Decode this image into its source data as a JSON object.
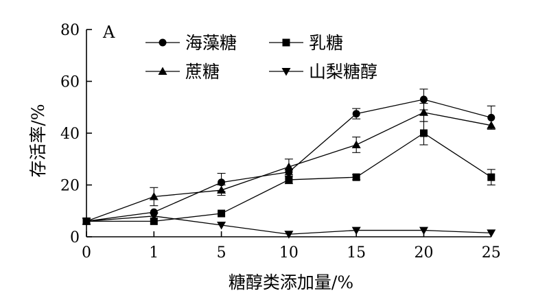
{
  "chart_data": {
    "type": "line",
    "panel_label": "A",
    "xlabel": "糖醇类添加量/%",
    "ylabel": "存活率/%",
    "categories": [
      "0",
      "1",
      "5",
      "10",
      "15",
      "20",
      "25"
    ],
    "ylim": [
      0,
      80
    ],
    "yticks": [
      "0",
      "20",
      "40",
      "60",
      "80"
    ],
    "grid": false,
    "legend_position": "top",
    "series": [
      {
        "name": "海藻糖",
        "marker": "circle",
        "values": [
          6,
          9.5,
          21,
          25,
          47.5,
          53,
          46
        ],
        "errors": [
          0,
          0,
          3.5,
          0,
          2,
          4,
          4.5
        ]
      },
      {
        "name": "乳糖",
        "marker": "square",
        "values": [
          6,
          6,
          9,
          22,
          23,
          40,
          23
        ],
        "errors": [
          0,
          0,
          0,
          1.5,
          1,
          4.5,
          3
        ]
      },
      {
        "name": "蔗糖",
        "marker": "triangle-up",
        "values": [
          6,
          15.5,
          18,
          27,
          35.5,
          48,
          43
        ],
        "errors": [
          0,
          3.5,
          2,
          3,
          3,
          3.5,
          0
        ]
      },
      {
        "name": "山梨糖醇",
        "marker": "triangle-down",
        "values": [
          6,
          8,
          4.5,
          1,
          2.5,
          2.5,
          1.5
        ],
        "errors": [
          0,
          0,
          0,
          0,
          0,
          0,
          0
        ]
      }
    ]
  }
}
